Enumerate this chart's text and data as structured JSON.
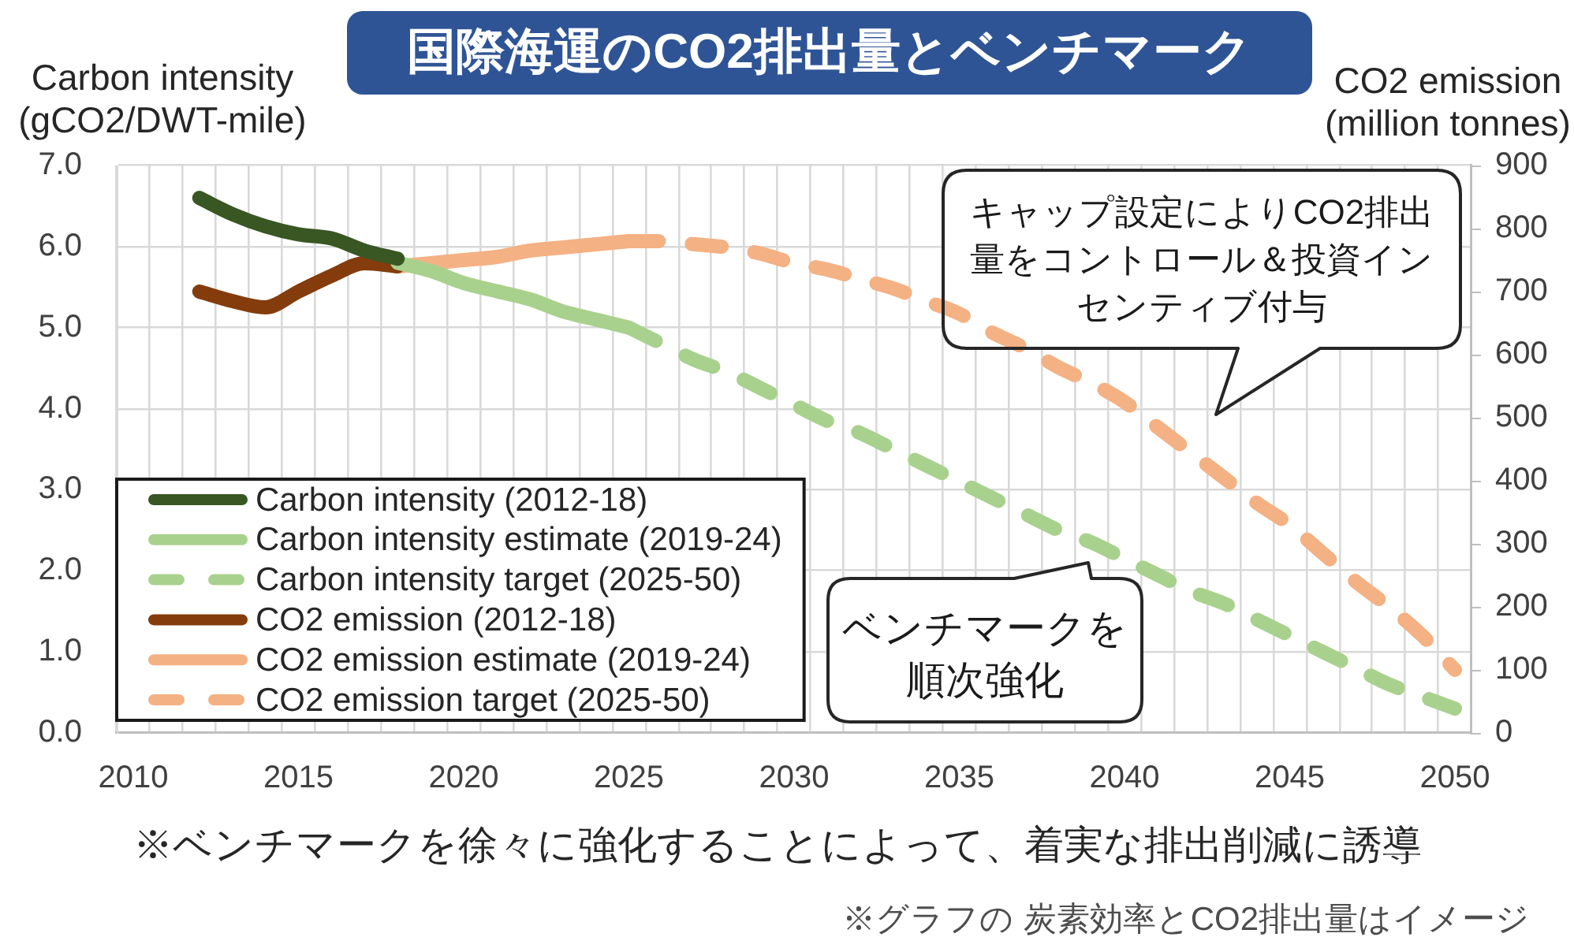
{
  "chart_data": {
    "type": "line",
    "title": "国際海運のCO2排出量とベンチマーク",
    "ylabel": "Carbon intensity (gCO2/DWT-mile)",
    "y2label": "CO2 emission (million tonnes)",
    "categories": [
      "2010",
      null,
      null,
      null,
      null,
      "2015",
      null,
      null,
      null,
      null,
      "2020",
      null,
      null,
      null,
      null,
      "2025",
      null,
      null,
      null,
      null,
      "2030",
      null,
      null,
      null,
      null,
      "2035",
      null,
      null,
      null,
      null,
      "2040",
      null,
      null,
      null,
      null,
      "2045",
      null,
      null,
      null,
      null,
      "2050"
    ],
    "series": [
      {
        "name": "Carbon intensity (2012-18)",
        "color": "#385723",
        "line_style": "solid",
        "values": [
          null,
          null,
          6.6,
          6.4,
          6.25,
          6.15,
          6.1,
          5.95,
          5.85,
          null,
          null,
          null,
          null,
          null,
          null,
          null,
          null,
          null,
          null,
          null,
          null,
          null,
          null,
          null,
          null,
          null,
          null,
          null,
          null,
          null,
          null,
          null,
          null,
          null,
          null,
          null,
          null,
          null,
          null,
          null,
          null
        ]
      },
      {
        "name": "Carbon intensity estimate (2019-24)",
        "color": "#a9d18e",
        "line_style": "solid",
        "values": [
          null,
          null,
          null,
          null,
          null,
          null,
          null,
          null,
          5.8,
          5.7,
          5.55,
          5.45,
          5.35,
          5.2,
          5.1,
          5.0,
          null,
          null,
          null,
          null,
          null,
          null,
          null,
          null,
          null,
          null,
          null,
          null,
          null,
          null,
          null,
          null,
          null,
          null,
          null,
          null,
          null,
          null,
          null,
          null,
          null
        ]
      },
      {
        "name": "Carbon intensity target (2025-50)",
        "color": "#a9d18e",
        "line_style": "dashed",
        "values": [
          null,
          null,
          null,
          null,
          null,
          null,
          null,
          null,
          null,
          null,
          null,
          null,
          null,
          null,
          null,
          5.0,
          4.8,
          4.6,
          4.45,
          4.25,
          4.05,
          3.85,
          3.7,
          3.5,
          3.3,
          3.1,
          2.9,
          2.7,
          2.5,
          2.35,
          2.15,
          1.95,
          1.75,
          1.6,
          1.4,
          1.2,
          1.0,
          0.8,
          0.6,
          0.45,
          0.3
        ]
      },
      {
        "name": "CO2 emission (2012-18)",
        "color": "#843c0c",
        "line_style": "solid",
        "axis": "y2",
        "values": [
          null,
          null,
          700,
          685,
          675,
          700,
          725,
          745,
          740,
          null,
          null,
          null,
          null,
          null,
          null,
          null,
          null,
          null,
          null,
          null,
          null,
          null,
          null,
          null,
          null,
          null,
          null,
          null,
          null,
          null,
          null,
          null,
          null,
          null,
          null,
          null,
          null,
          null,
          null,
          null,
          null
        ]
      },
      {
        "name": "CO2 emission estimate (2019-24)",
        "color": "#f4b183",
        "line_style": "solid",
        "axis": "y2",
        "values": [
          null,
          null,
          null,
          null,
          null,
          null,
          null,
          null,
          740,
          745,
          750,
          755,
          765,
          770,
          775,
          780,
          null,
          null,
          null,
          null,
          null,
          null,
          null,
          null,
          null,
          null,
          null,
          null,
          null,
          null,
          null,
          null,
          null,
          null,
          null,
          null,
          null,
          null,
          null,
          null,
          null
        ]
      },
      {
        "name": "CO2 emission target (2025-50)",
        "color": "#f4b183",
        "line_style": "dashed",
        "axis": "y2",
        "values": [
          null,
          null,
          null,
          null,
          null,
          null,
          null,
          null,
          null,
          null,
          null,
          null,
          null,
          null,
          null,
          780,
          780,
          775,
          770,
          760,
          745,
          735,
          720,
          705,
          685,
          665,
          635,
          610,
          580,
          555,
          525,
          485,
          445,
          405,
          365,
          330,
          285,
          240,
          200,
          155,
          100
        ]
      }
    ],
    "ylim": [
      0,
      7
    ],
    "yticks": [
      {
        "value": 0,
        "label": "0.0"
      },
      {
        "value": 1,
        "label": "1.0"
      },
      {
        "value": 2,
        "label": "2.0"
      },
      {
        "value": 3,
        "label": "3.0"
      },
      {
        "value": 4,
        "label": "4.0"
      },
      {
        "value": 5,
        "label": "5.0"
      },
      {
        "value": 6,
        "label": "6.0"
      },
      {
        "value": 7,
        "label": "7.0"
      }
    ],
    "y2lim": [
      0,
      900
    ],
    "y2ticks": [
      0,
      100,
      200,
      300,
      400,
      500,
      600,
      700,
      800,
      900
    ],
    "grid": true,
    "legend": "bottom left",
    "annotations": [
      "キャップ設定によりCO2排出量をコントロール＆投資インセンティブ付与",
      "ベンチマークを順次強化",
      "※ベンチマークを徐々に強化することによって、着実な排出削減に誘導",
      "※グラフの 炭素効率とCO2排出量はイメージ"
    ]
  }
}
